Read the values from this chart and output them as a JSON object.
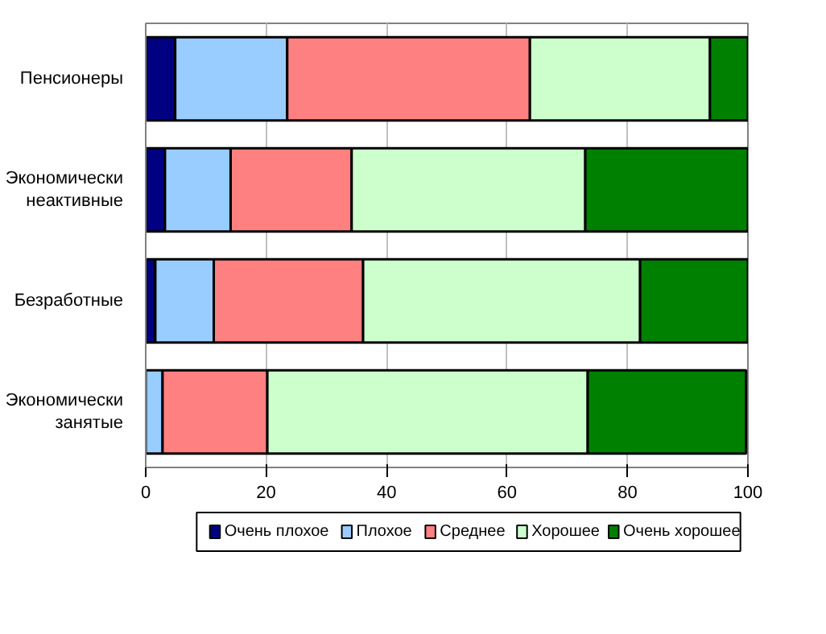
{
  "chart_data": {
    "type": "bar",
    "orientation": "horizontal",
    "stacked": true,
    "categories": [
      "Пенсионеры",
      "Экономически\nнеактивные",
      "Безработные",
      "Экономически\nзанятые"
    ],
    "series": [
      {
        "name": "Очень плохое",
        "color": "#000080",
        "values": [
          4.9,
          3.2,
          1.6,
          null
        ]
      },
      {
        "name": "Плохое",
        "color": "#99ccff",
        "values": [
          18.6,
          10.9,
          9.7,
          2.8
        ]
      },
      {
        "name": "Среднее",
        "color": "#ff8080",
        "values": [
          40.3,
          20.1,
          24.8,
          17.4
        ]
      },
      {
        "name": "Хорошее",
        "color": "#ccffcc",
        "values": [
          29.9,
          38.8,
          46.0,
          53.2
        ]
      },
      {
        "name": "Очень хорошее",
        "color": "#008000",
        "values": [
          6.3,
          27.0,
          17.9,
          26.3
        ]
      }
    ],
    "xlim": [
      0,
      100
    ],
    "xticks": [
      0,
      20,
      40,
      60,
      80,
      100
    ],
    "grid": "x",
    "legend": "bottom"
  }
}
